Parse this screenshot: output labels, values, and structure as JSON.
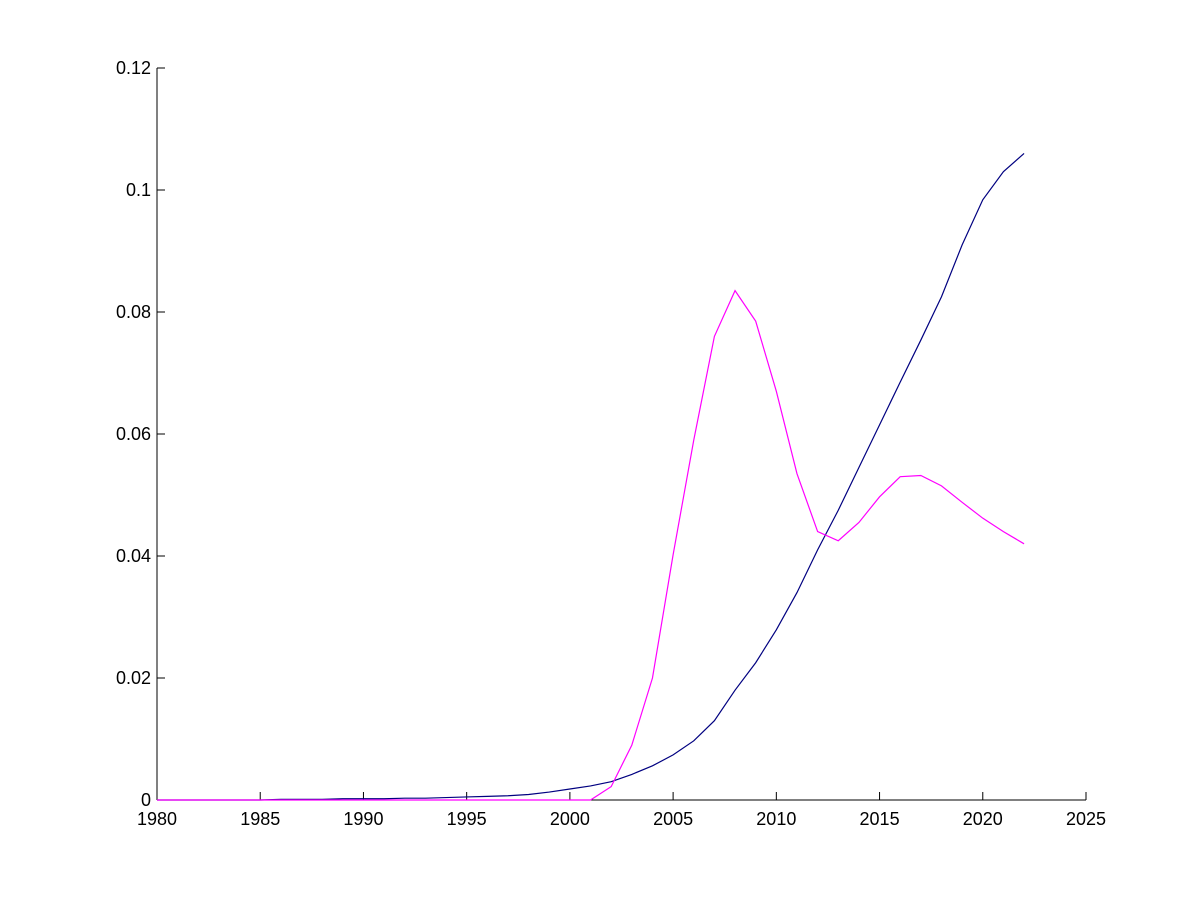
{
  "chart_data": {
    "type": "line",
    "x": [
      1980,
      1981,
      1982,
      1983,
      1984,
      1985,
      1986,
      1987,
      1988,
      1989,
      1990,
      1991,
      1992,
      1993,
      1994,
      1995,
      1996,
      1997,
      1998,
      1999,
      2000,
      2001,
      2002,
      2003,
      2004,
      2005,
      2006,
      2007,
      2008,
      2009,
      2010,
      2011,
      2012,
      2013,
      2014,
      2015,
      2016,
      2017,
      2018,
      2019,
      2020,
      2021,
      2022
    ],
    "series": [
      {
        "color": "#000080",
        "values": [
          0,
          0,
          0,
          0,
          0,
          0,
          0.0001,
          0.0001,
          0.0001,
          0.0002,
          0.0002,
          0.0002,
          0.0003,
          0.0003,
          0.0004,
          0.0005,
          0.0006,
          0.0007,
          0.0009,
          0.0013,
          0.0018,
          0.0023,
          0.003,
          0.0042,
          0.0056,
          0.0074,
          0.0097,
          0.013,
          0.018,
          0.0225,
          0.0279,
          0.034,
          0.041,
          0.0475,
          0.0545,
          0.0615,
          0.0685,
          0.0754,
          0.0825,
          0.091,
          0.0984,
          0.103,
          0.106
        ]
      },
      {
        "color": "#ff00ff",
        "values": [
          0,
          0,
          0,
          0,
          0,
          0,
          0,
          0,
          0,
          0,
          0,
          0,
          0,
          0,
          0,
          0,
          0,
          0,
          0,
          0,
          0,
          0,
          0.0022,
          0.009,
          0.02,
          0.0402,
          0.059,
          0.076,
          0.0835,
          0.0785,
          0.067,
          0.0535,
          0.044,
          0.0425,
          0.0455,
          0.0497,
          0.053,
          0.0532,
          0.0515,
          0.0488,
          0.0462,
          0.044,
          0.042
        ]
      }
    ],
    "xlim": [
      1980,
      2025
    ],
    "xticks": [
      1980,
      1985,
      1990,
      1995,
      2000,
      2005,
      2010,
      2015,
      2020,
      2025
    ],
    "ylim": [
      0,
      0.12
    ],
    "yticks": [
      0,
      0.02,
      0.04,
      0.06,
      0.08,
      0.1,
      0.12
    ]
  }
}
